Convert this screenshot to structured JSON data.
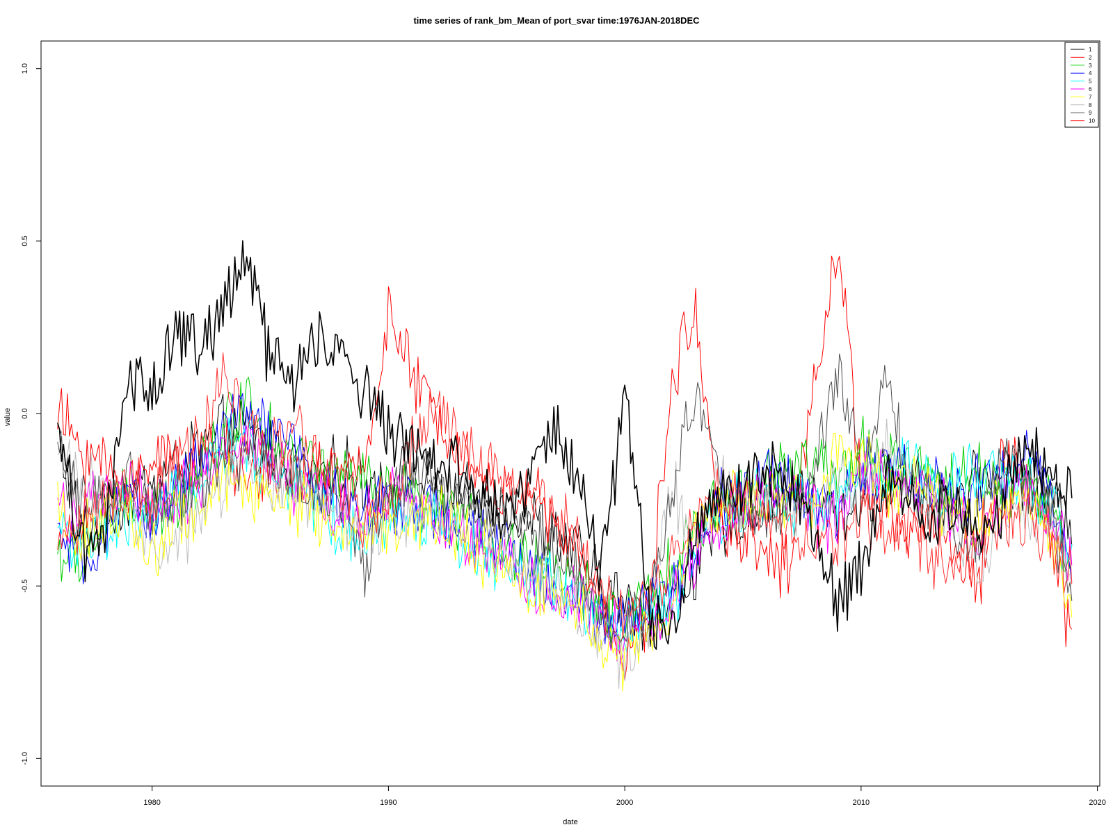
{
  "chart_data": {
    "type": "line",
    "title": "time series of rank_bm_Mean of port_svar time:1976JAN-2018DEC",
    "xlabel": "date",
    "ylabel": "value",
    "xlim": [
      1975.3,
      2020.1
    ],
    "ylim": [
      -1.08,
      1.08
    ],
    "x_ticks": [
      1980,
      1990,
      2000,
      2010,
      2020
    ],
    "x_tick_labels": [
      "1980",
      "1990",
      "2000",
      "2010",
      "2020"
    ],
    "y_ticks": [
      -1.0,
      -0.5,
      0.0,
      0.5,
      1.0
    ],
    "y_tick_labels": [
      "-1.0",
      "-0.5",
      "0.0",
      "0.5",
      "1.0"
    ],
    "grid": false,
    "legend_position": "top-right",
    "x_sample_years": [
      1976.0,
      1977.0,
      1978.0,
      1979.0,
      1980.0,
      1981.0,
      1982.0,
      1983.0,
      1984.0,
      1985.0,
      1986.0,
      1987.0,
      1988.0,
      1989.0,
      1990.0,
      1991.0,
      1992.0,
      1993.0,
      1994.0,
      1995.0,
      1996.0,
      1997.0,
      1998.0,
      1999.0,
      2000.0,
      2001.0,
      2002.0,
      2003.0,
      2004.0,
      2005.0,
      2006.0,
      2007.0,
      2008.0,
      2009.0,
      2010.0,
      2011.0,
      2012.0,
      2013.0,
      2014.0,
      2015.0,
      2016.0,
      2017.0,
      2018.0,
      2018.9
    ],
    "series": [
      {
        "name": "1",
        "color": "#000000",
        "values": [
          -0.05,
          -0.35,
          -0.3,
          -0.25,
          -0.2,
          -0.15,
          -0.1,
          -0.05,
          -0.05,
          -0.1,
          -0.15,
          -0.2,
          -0.15,
          -0.2,
          -0.2,
          -0.18,
          -0.22,
          -0.25,
          -0.25,
          -0.28,
          -0.3,
          -0.35,
          -0.4,
          -0.5,
          -0.55,
          -0.6,
          -0.55,
          -0.45,
          -0.35,
          -0.3,
          -0.25,
          -0.2,
          -0.25,
          -0.3,
          -0.25,
          -0.2,
          -0.18,
          -0.22,
          -0.25,
          -0.2,
          -0.15,
          -0.2,
          -0.25,
          -0.3
        ]
      },
      {
        "name": "2",
        "color": "#ff0000",
        "values": [
          0.0,
          -0.1,
          -0.15,
          -0.25,
          -0.1,
          -0.15,
          -0.15,
          -0.1,
          -0.2,
          -0.15,
          -0.2,
          -0.15,
          -0.2,
          -0.15,
          0.3,
          0.1,
          0.0,
          -0.1,
          -0.2,
          -0.25,
          -0.2,
          -0.35,
          -0.4,
          -0.55,
          -0.7,
          -0.6,
          0.1,
          0.3,
          -0.3,
          -0.35,
          -0.4,
          -0.45,
          0.1,
          0.5,
          -0.2,
          -0.3,
          -0.35,
          -0.3,
          -0.4,
          -0.5,
          -0.1,
          -0.2,
          -0.35,
          -0.65
        ]
      },
      {
        "name": "3",
        "color": "#00cd00",
        "values": [
          -0.4,
          -0.45,
          -0.3,
          -0.25,
          -0.3,
          -0.25,
          -0.15,
          -0.05,
          0.05,
          -0.05,
          -0.1,
          -0.15,
          -0.2,
          -0.2,
          -0.25,
          -0.25,
          -0.3,
          -0.3,
          -0.35,
          -0.4,
          -0.4,
          -0.45,
          -0.5,
          -0.55,
          -0.6,
          -0.55,
          -0.45,
          -0.35,
          -0.25,
          -0.2,
          -0.2,
          -0.15,
          -0.15,
          -0.2,
          -0.1,
          -0.15,
          -0.15,
          -0.2,
          -0.2,
          -0.15,
          -0.2,
          -0.2,
          -0.25,
          -0.5
        ]
      },
      {
        "name": "4",
        "color": "#0000ff",
        "values": [
          -0.35,
          -0.45,
          -0.35,
          -0.25,
          -0.3,
          -0.2,
          -0.15,
          -0.05,
          0.0,
          -0.05,
          -0.1,
          -0.2,
          -0.25,
          -0.3,
          -0.25,
          -0.25,
          -0.3,
          -0.35,
          -0.35,
          -0.4,
          -0.45,
          -0.5,
          -0.55,
          -0.6,
          -0.6,
          -0.55,
          -0.5,
          -0.4,
          -0.25,
          -0.2,
          -0.2,
          -0.2,
          -0.25,
          -0.3,
          -0.15,
          -0.15,
          -0.2,
          -0.2,
          -0.25,
          -0.2,
          -0.2,
          -0.1,
          -0.25,
          -0.45
        ]
      },
      {
        "name": "5",
        "color": "#00ffff",
        "values": [
          -0.3,
          -0.4,
          -0.35,
          -0.3,
          -0.3,
          -0.25,
          -0.2,
          -0.1,
          -0.1,
          -0.15,
          -0.2,
          -0.25,
          -0.35,
          -0.35,
          -0.3,
          -0.3,
          -0.3,
          -0.35,
          -0.4,
          -0.45,
          -0.5,
          -0.5,
          -0.55,
          -0.6,
          -0.65,
          -0.6,
          -0.55,
          -0.4,
          -0.3,
          -0.25,
          -0.25,
          -0.25,
          -0.25,
          -0.25,
          -0.2,
          -0.2,
          -0.15,
          -0.2,
          -0.2,
          -0.15,
          -0.2,
          -0.2,
          -0.25,
          -0.45
        ]
      },
      {
        "name": "6",
        "color": "#ff00ff",
        "values": [
          -0.25,
          -0.3,
          -0.25,
          -0.2,
          -0.3,
          -0.25,
          -0.2,
          -0.1,
          -0.1,
          -0.15,
          -0.2,
          -0.25,
          -0.3,
          -0.3,
          -0.25,
          -0.25,
          -0.3,
          -0.35,
          -0.4,
          -0.4,
          -0.5,
          -0.55,
          -0.55,
          -0.6,
          -0.65,
          -0.6,
          -0.55,
          -0.4,
          -0.3,
          -0.25,
          -0.25,
          -0.25,
          -0.3,
          -0.3,
          -0.15,
          -0.2,
          -0.2,
          -0.25,
          -0.3,
          -0.35,
          -0.25,
          -0.2,
          -0.3,
          -0.4
        ]
      },
      {
        "name": "7",
        "color": "#ffff00",
        "values": [
          -0.3,
          -0.35,
          -0.3,
          -0.3,
          -0.4,
          -0.3,
          -0.3,
          -0.2,
          -0.2,
          -0.25,
          -0.25,
          -0.3,
          -0.35,
          -0.35,
          -0.3,
          -0.3,
          -0.3,
          -0.35,
          -0.4,
          -0.45,
          -0.5,
          -0.5,
          -0.55,
          -0.65,
          -0.7,
          -0.65,
          -0.55,
          -0.35,
          -0.25,
          -0.25,
          -0.25,
          -0.25,
          -0.3,
          -0.1,
          -0.15,
          -0.2,
          -0.2,
          -0.25,
          -0.3,
          -0.3,
          -0.3,
          -0.25,
          -0.35,
          -0.6
        ]
      },
      {
        "name": "8",
        "color": "#bebebe",
        "values": [
          -0.1,
          -0.2,
          -0.25,
          -0.3,
          -0.35,
          -0.4,
          -0.3,
          -0.2,
          -0.15,
          -0.2,
          -0.2,
          -0.25,
          -0.3,
          -0.35,
          -0.3,
          -0.3,
          -0.25,
          -0.3,
          -0.35,
          -0.4,
          -0.45,
          -0.5,
          -0.55,
          -0.65,
          -0.75,
          -0.6,
          -0.2,
          -0.4,
          -0.2,
          -0.25,
          -0.25,
          -0.25,
          -0.3,
          -0.2,
          -0.25,
          -0.1,
          -0.2,
          -0.25,
          -0.35,
          -0.45,
          -0.25,
          -0.3,
          -0.3,
          -0.5
        ]
      },
      {
        "name": "9",
        "color": "#4d4d4d",
        "values": [
          -0.1,
          -0.25,
          -0.25,
          -0.2,
          -0.3,
          -0.25,
          -0.2,
          -0.15,
          -0.1,
          -0.15,
          -0.2,
          -0.25,
          -0.25,
          -0.45,
          -0.2,
          -0.2,
          -0.2,
          -0.25,
          -0.3,
          -0.3,
          -0.35,
          -0.4,
          -0.45,
          -0.55,
          -0.65,
          -0.55,
          -0.2,
          0.05,
          -0.2,
          -0.3,
          -0.3,
          -0.25,
          -0.2,
          0.15,
          -0.2,
          0.15,
          -0.2,
          -0.25,
          -0.35,
          -0.4,
          -0.1,
          -0.2,
          -0.25,
          -0.55
        ]
      },
      {
        "name": "10",
        "color": "#ff3030",
        "values": [
          -0.35,
          -0.3,
          -0.25,
          -0.2,
          -0.25,
          -0.15,
          -0.1,
          0.1,
          -0.05,
          -0.1,
          -0.05,
          -0.15,
          -0.2,
          -0.3,
          -0.25,
          -0.1,
          0.05,
          -0.1,
          -0.15,
          -0.2,
          -0.25,
          -0.3,
          -0.35,
          -0.55,
          -0.6,
          -0.55,
          -0.45,
          -0.3,
          -0.2,
          -0.25,
          -0.3,
          -0.35,
          -0.4,
          -0.35,
          -0.3,
          -0.35,
          -0.35,
          -0.4,
          -0.45,
          -0.35,
          -0.3,
          -0.3,
          -0.35,
          -0.45
        ]
      },
      {
        "name": "",
        "color": "#000000",
        "emphasis": true,
        "values": [
          -0.02,
          -0.4,
          -0.35,
          0.1,
          0.05,
          0.25,
          0.2,
          0.3,
          0.45,
          0.15,
          0.1,
          0.2,
          0.15,
          0.05,
          -0.05,
          -0.1,
          -0.15,
          -0.15,
          -0.25,
          -0.3,
          -0.2,
          -0.05,
          -0.2,
          -0.45,
          0.05,
          -0.55,
          -0.65,
          -0.3,
          -0.25,
          -0.2,
          -0.15,
          -0.2,
          -0.3,
          -0.55,
          -0.45,
          -0.2,
          -0.25,
          -0.3,
          -0.25,
          -0.35,
          -0.25,
          -0.1,
          -0.2,
          -0.25
        ]
      }
    ]
  }
}
